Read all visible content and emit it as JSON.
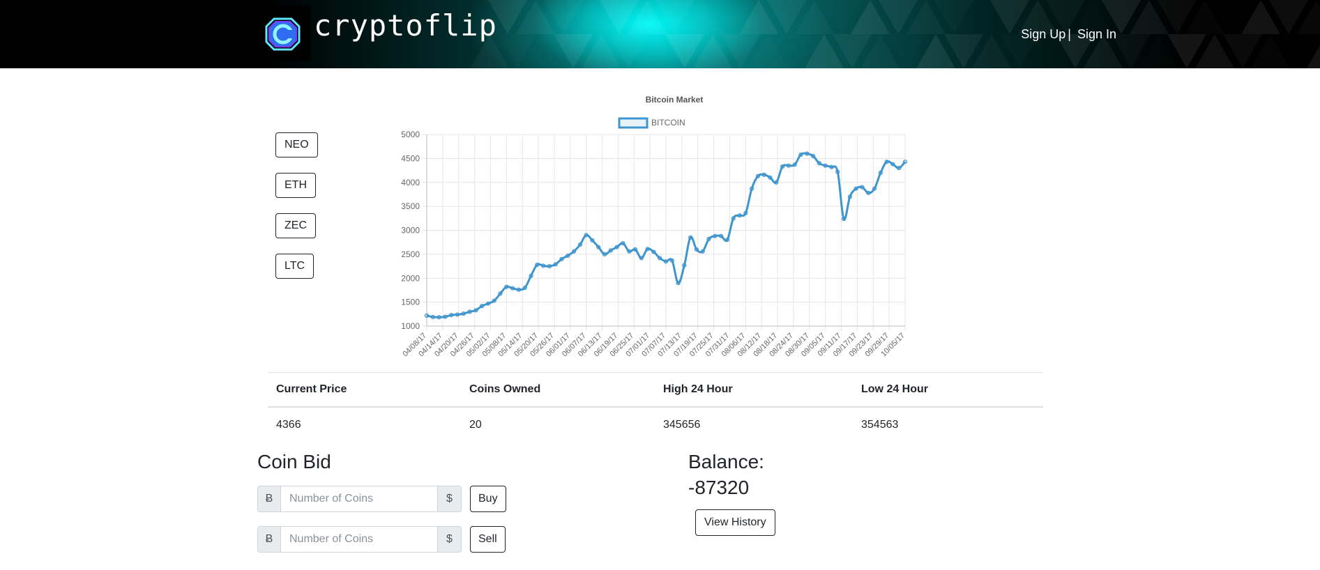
{
  "header": {
    "brand": "cryptoflip",
    "nav": {
      "signup": "Sign Up",
      "separator": "|",
      "signin": "Sign In"
    },
    "accent_color": "#00ffff"
  },
  "coin_buttons": [
    "NEO",
    "ETH",
    "ZEC",
    "LTC"
  ],
  "chart_data": {
    "type": "line",
    "title": "Bitcoin Market",
    "series": [
      {
        "name": "BITCOIN",
        "color": "#3e95cd",
        "values": [
          1220,
          1190,
          1185,
          1195,
          1230,
          1240,
          1260,
          1300,
          1330,
          1420,
          1470,
          1530,
          1680,
          1820,
          1790,
          1760,
          1800,
          2050,
          2280,
          2260,
          2250,
          2290,
          2400,
          2470,
          2560,
          2700,
          2900,
          2790,
          2650,
          2500,
          2580,
          2650,
          2730,
          2560,
          2600,
          2420,
          2610,
          2550,
          2420,
          2350,
          2370,
          1900,
          2270,
          2850,
          2600,
          2560,
          2820,
          2880,
          2880,
          2800,
          3250,
          3310,
          3360,
          3870,
          4130,
          4160,
          4100,
          4000,
          4330,
          4350,
          4370,
          4580,
          4600,
          4550,
          4400,
          4350,
          4320,
          4220,
          3240,
          3700,
          3870,
          3900,
          3780,
          3870,
          4200,
          4430,
          4380,
          4300,
          4430
        ]
      }
    ],
    "x_labels": [
      "04/08/17",
      "04/14/17",
      "04/20/17",
      "04/26/17",
      "05/02/17",
      "05/08/17",
      "05/14/17",
      "05/20/17",
      "05/26/17",
      "06/01/17",
      "06/07/17",
      "06/13/17",
      "06/19/17",
      "06/25/17",
      "07/01/17",
      "07/07/17",
      "07/13/17",
      "07/19/17",
      "07/25/17",
      "07/31/17",
      "08/06/17",
      "08/12/17",
      "08/18/17",
      "08/24/17",
      "08/30/17",
      "09/05/17",
      "09/11/17",
      "09/17/17",
      "09/23/17",
      "09/29/17",
      "10/05/17"
    ],
    "ylim": [
      1000,
      5000
    ],
    "y_ticks": [
      1000,
      1500,
      2000,
      2500,
      3000,
      3500,
      4000,
      4500,
      5000
    ],
    "grid": true,
    "legend": "top"
  },
  "stats": {
    "headers": [
      "Current Price",
      "Coins Owned",
      "High 24 Hour",
      "Low 24 Hour"
    ],
    "values": [
      "4366",
      "20",
      "345656",
      "354563"
    ]
  },
  "bid": {
    "title": "Coin Bid",
    "prefix": "Ƀ",
    "suffix": "$",
    "placeholder": "Number of Coins",
    "buy_label": "Buy",
    "sell_label": "Sell"
  },
  "balance": {
    "label": "Balance:",
    "value": "-87320",
    "history_label": "View History"
  }
}
